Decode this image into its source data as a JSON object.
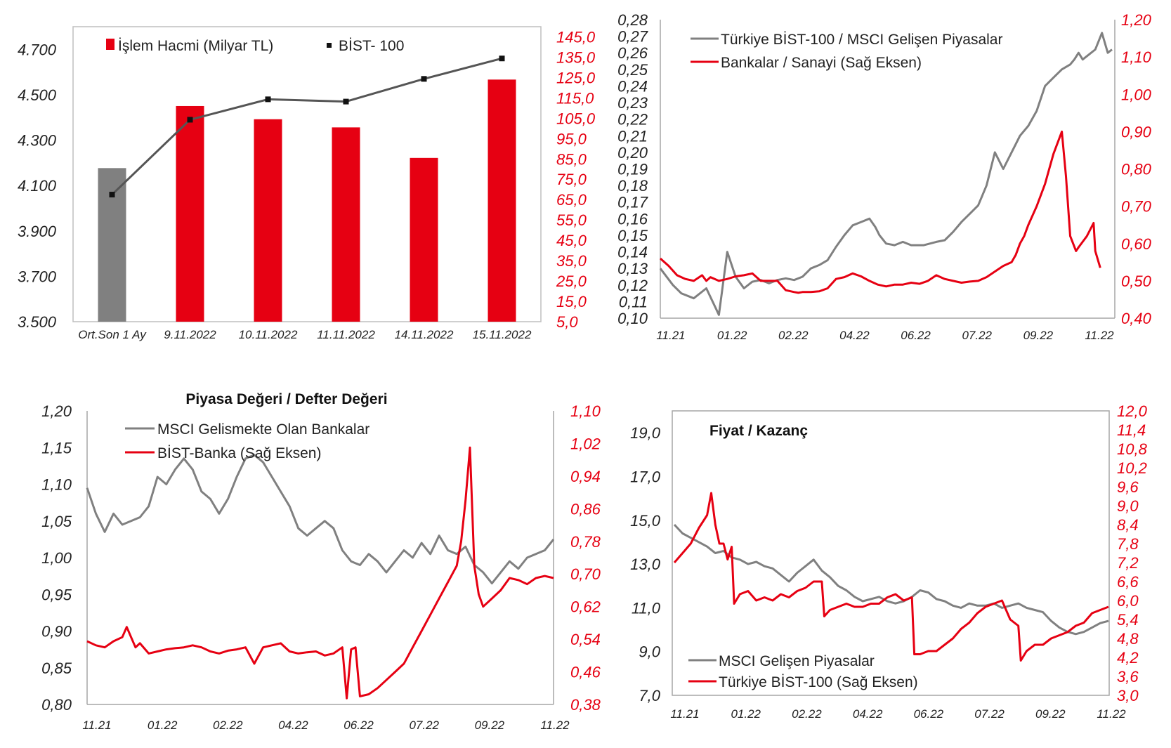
{
  "chart_data": [
    {
      "type": "bar",
      "legend": [
        "İşlem Hacmi (Milyar TL)",
        "BİST- 100"
      ],
      "categories": [
        "Ort.Son 1 Ay",
        "9.11.2022",
        "10.11.2022",
        "11.11.2022",
        "14.11.2022",
        "15.11.2022"
      ],
      "series": [
        {
          "name": "İşlem Hacmi (Milyar TL)",
          "axis": "right",
          "values": [
            80.5,
            111.0,
            104.5,
            100.5,
            85.5,
            124.0
          ],
          "colors": [
            "#808080",
            "#e60012",
            "#e60012",
            "#e60012",
            "#e60012",
            "#e60012"
          ]
        },
        {
          "name": "BİST- 100",
          "axis": "left",
          "type": "line",
          "values": [
            4060,
            4390,
            4480,
            4470,
            4570,
            4660
          ],
          "color": "#555555"
        }
      ],
      "yleft": {
        "ticks": [
          "3.500",
          "3.700",
          "3.900",
          "4.100",
          "4.300",
          "4.500",
          "4.700"
        ],
        "lim": [
          3500,
          4800
        ]
      },
      "yright": {
        "ticks": [
          "5,0",
          "15,0",
          "25,0",
          "35,0",
          "45,0",
          "55,0",
          "65,0",
          "75,0",
          "85,0",
          "95,0",
          "105,0",
          "115,0",
          "125,0",
          "135,0",
          "145,0"
        ],
        "lim": [
          5,
          150
        ]
      }
    },
    {
      "type": "line",
      "legend": [
        "Türkiye BİST-100 / MSCI Gelişen Piyasalar",
        "Bankalar / Sanayi (Sağ Eksen)"
      ],
      "xticks": [
        "11.21",
        "01.22",
        "02.22",
        "04.22",
        "06.22",
        "07.22",
        "09.22",
        "11.22"
      ],
      "yleft": {
        "ticks": [
          "0,10",
          "0,11",
          "0,12",
          "0,13",
          "0,14",
          "0,15",
          "0,16",
          "0,17",
          "0,18",
          "0,19",
          "0,20",
          "0,21",
          "0,22",
          "0,23",
          "0,24",
          "0,25",
          "0,26",
          "0,27",
          "0,28"
        ],
        "lim": [
          0.1,
          0.28
        ]
      },
      "yright": {
        "ticks": [
          "0,40",
          "0,50",
          "0,60",
          "0,70",
          "0,80",
          "0,90",
          "1,00",
          "1,10",
          "1,20"
        ],
        "lim": [
          0.4,
          1.2
        ]
      },
      "series": [
        {
          "name": "Türkiye BİST-100 / MSCI Gelişen Piyasalar",
          "axis": "left",
          "color": "#808080",
          "x": [
            0,
            1.5,
            2.5,
            4,
            5.5,
            7,
            8,
            9,
            10,
            11,
            12,
            13,
            14,
            15,
            16,
            17,
            17.6,
            18,
            19,
            20,
            21,
            22,
            23,
            24,
            25,
            25.7,
            26.2,
            27,
            28,
            29,
            30,
            31.5,
            33,
            34,
            35,
            36,
            37,
            38,
            39,
            40,
            41,
            42,
            43,
            44,
            45,
            46,
            47,
            48,
            49,
            49.5,
            50,
            50.5,
            51,
            52,
            52.8,
            53.5,
            54
          ],
          "values": [
            0.13,
            0.12,
            0.115,
            0.112,
            0.118,
            0.102,
            0.14,
            0.125,
            0.118,
            0.122,
            0.123,
            0.121,
            0.123,
            0.124,
            0.123,
            0.125,
            0.128,
            0.13,
            0.132,
            0.135,
            0.143,
            0.15,
            0.156,
            0.158,
            0.16,
            0.155,
            0.15,
            0.145,
            0.144,
            0.146,
            0.144,
            0.144,
            0.146,
            0.147,
            0.152,
            0.158,
            0.163,
            0.168,
            0.18,
            0.2,
            0.19,
            0.2,
            0.21,
            0.216,
            0.225,
            0.24,
            0.245,
            0.25,
            0.253,
            0.256,
            0.26,
            0.256,
            0.258,
            0.262,
            0.272,
            0.26,
            0.262
          ]
        },
        {
          "name": "Bankalar / Sanayi (Sağ Eksen)",
          "axis": "right",
          "color": "#e60012",
          "x": [
            0,
            1,
            2,
            3,
            4,
            5,
            5.5,
            6,
            7,
            8,
            9,
            10,
            11,
            12,
            13,
            14,
            15,
            16,
            16.5,
            17,
            18,
            19,
            20,
            21,
            22,
            23,
            24,
            25,
            26,
            27,
            28,
            29,
            30,
            31,
            32,
            33,
            34,
            35,
            36,
            37,
            38,
            39,
            40,
            41,
            42,
            42.5,
            43,
            43.5,
            44,
            45,
            46,
            47,
            48,
            48.5,
            49,
            49.7,
            50,
            51,
            51.8,
            52,
            52.6
          ],
          "values": [
            0.56,
            0.54,
            0.515,
            0.505,
            0.5,
            0.515,
            0.5,
            0.51,
            0.5,
            0.505,
            0.512,
            0.515,
            0.52,
            0.5,
            0.5,
            0.5,
            0.475,
            0.47,
            0.468,
            0.47,
            0.47,
            0.472,
            0.48,
            0.505,
            0.51,
            0.52,
            0.512,
            0.5,
            0.49,
            0.485,
            0.49,
            0.49,
            0.495,
            0.492,
            0.5,
            0.515,
            0.505,
            0.5,
            0.495,
            0.498,
            0.5,
            0.51,
            0.525,
            0.54,
            0.55,
            0.57,
            0.6,
            0.62,
            0.65,
            0.7,
            0.76,
            0.84,
            0.9,
            0.78,
            0.62,
            0.58,
            0.59,
            0.62,
            0.655,
            0.58,
            0.535
          ]
        }
      ]
    },
    {
      "type": "line",
      "title": "Piyasa Değeri / Defter Değeri",
      "legend": [
        "MSCI Gelismekte Olan Bankalar",
        "BİST-Banka (Sağ Eksen)"
      ],
      "xticks": [
        "11.21",
        "01.22",
        "02.22",
        "04.22",
        "06.22",
        "07.22",
        "09.22",
        "11.22"
      ],
      "yleft": {
        "ticks": [
          "0,80",
          "0,85",
          "0,90",
          "0,95",
          "1,00",
          "1,05",
          "1,10",
          "1,15",
          "1,20"
        ],
        "lim": [
          0.8,
          1.2
        ]
      },
      "yright": {
        "ticks": [
          "0,38",
          "0,46",
          "0,54",
          "0,62",
          "0,70",
          "0,78",
          "0,86",
          "0,94",
          "1,02",
          "1,10"
        ],
        "lim": [
          0.38,
          1.1
        ]
      },
      "series": [
        {
          "name": "MSCI Gelismekte Olan Bankalar",
          "axis": "left",
          "color": "#808080",
          "x": [
            0,
            1,
            2,
            3,
            4,
            5,
            6,
            7,
            8,
            9,
            10,
            11,
            12,
            13,
            14,
            15,
            16,
            17,
            18,
            19,
            20,
            21,
            22,
            23,
            24,
            25,
            26,
            27,
            28,
            29,
            30,
            31,
            32,
            33,
            34,
            35,
            36,
            37,
            38,
            39,
            40,
            41,
            42,
            43,
            44,
            45,
            46,
            47,
            48,
            49,
            50,
            51,
            52,
            53
          ],
          "values": [
            1.095,
            1.06,
            1.035,
            1.06,
            1.045,
            1.05,
            1.055,
            1.07,
            1.11,
            1.1,
            1.12,
            1.135,
            1.12,
            1.09,
            1.08,
            1.06,
            1.08,
            1.11,
            1.135,
            1.14,
            1.13,
            1.11,
            1.09,
            1.07,
            1.04,
            1.03,
            1.04,
            1.05,
            1.04,
            1.01,
            0.995,
            0.99,
            1.005,
            0.995,
            0.98,
            0.995,
            1.01,
            1.0,
            1.02,
            1.005,
            1.03,
            1.01,
            1.005,
            1.015,
            0.99,
            0.98,
            0.965,
            0.98,
            0.995,
            0.985,
            1.0,
            1.005,
            1.01,
            1.025
          ]
        },
        {
          "name": "BİST-Banka (Sağ Eksen)",
          "axis": "right",
          "color": "#e60012",
          "x": [
            0,
            1,
            2,
            3,
            4,
            4.5,
            5,
            5.5,
            6,
            7,
            8,
            9,
            10,
            11,
            12,
            13,
            14,
            15,
            16,
            17,
            18,
            19,
            20,
            21,
            22,
            23,
            24,
            25,
            26,
            27,
            28,
            29,
            29.5,
            30,
            30.5,
            31,
            32,
            33,
            34,
            35,
            36,
            37,
            38,
            39,
            40,
            41,
            42,
            42.5,
            43,
            43.5,
            44,
            44.5,
            45,
            46,
            47,
            48,
            49,
            50,
            51,
            52,
            53
          ],
          "values": [
            0.535,
            0.525,
            0.52,
            0.535,
            0.545,
            0.57,
            0.545,
            0.52,
            0.53,
            0.505,
            0.51,
            0.515,
            0.518,
            0.52,
            0.525,
            0.52,
            0.51,
            0.505,
            0.512,
            0.515,
            0.52,
            0.48,
            0.52,
            0.525,
            0.53,
            0.51,
            0.505,
            0.508,
            0.51,
            0.5,
            0.505,
            0.52,
            0.395,
            0.515,
            0.52,
            0.4,
            0.405,
            0.42,
            0.44,
            0.46,
            0.48,
            0.52,
            0.56,
            0.6,
            0.64,
            0.68,
            0.72,
            0.78,
            0.88,
            1.01,
            0.72,
            0.65,
            0.62,
            0.64,
            0.66,
            0.69,
            0.685,
            0.675,
            0.69,
            0.695,
            0.69
          ]
        }
      ]
    },
    {
      "type": "line",
      "title": "Fiyat / Kazanç",
      "legend": [
        "MSCI Gelişen Piyasalar",
        "Türkiye BİST-100 (Sağ Eksen)"
      ],
      "xticks": [
        "11.21",
        "01.22",
        "02.22",
        "04.22",
        "06.22",
        "07.22",
        "09.22",
        "11.22"
      ],
      "yleft": {
        "ticks": [
          "7,0",
          "9,0",
          "11,0",
          "13,0",
          "15,0",
          "17,0",
          "19,0"
        ],
        "lim": [
          7.0,
          20.0
        ]
      },
      "yright": {
        "ticks": [
          "3,0",
          "3,6",
          "4,2",
          "4,8",
          "5,4",
          "6,0",
          "6,6",
          "7,2",
          "7,8",
          "8,4",
          "9,0",
          "9,6",
          "10,2",
          "10,8",
          "11,4",
          "12,0"
        ],
        "lim": [
          3.0,
          12.0
        ]
      },
      "series": [
        {
          "name": "MSCI Gelişen Piyasalar",
          "axis": "left",
          "color": "#808080",
          "x": [
            0,
            1,
            2,
            3,
            4,
            5,
            6,
            7,
            8,
            9,
            10,
            11,
            12,
            13,
            14,
            15,
            16,
            17,
            18,
            19,
            20,
            21,
            22,
            23,
            24,
            25,
            26,
            27,
            28,
            29,
            30,
            31,
            32,
            33,
            34,
            35,
            36,
            37,
            38,
            39,
            40,
            41,
            42,
            43,
            44,
            45,
            46,
            47,
            48,
            49,
            50,
            51,
            52,
            53
          ],
          "values": [
            14.8,
            14.4,
            14.2,
            14.0,
            13.8,
            13.5,
            13.6,
            13.3,
            13.2,
            13.0,
            13.1,
            12.9,
            12.8,
            12.5,
            12.2,
            12.6,
            12.9,
            13.2,
            12.7,
            12.4,
            12.0,
            11.8,
            11.5,
            11.3,
            11.4,
            11.5,
            11.3,
            11.2,
            11.3,
            11.5,
            11.8,
            11.7,
            11.4,
            11.3,
            11.1,
            11.0,
            11.2,
            11.1,
            11.1,
            11.2,
            11.0,
            11.1,
            11.2,
            11.0,
            10.9,
            10.8,
            10.4,
            10.1,
            9.9,
            9.8,
            9.9,
            10.1,
            10.3,
            10.4
          ]
        },
        {
          "name": "Türkiye BİST-100 (Sağ Eksen)",
          "axis": "right",
          "color": "#e60012",
          "x": [
            0,
            1,
            2,
            3,
            4,
            4.5,
            5,
            5.5,
            6,
            6.5,
            7,
            7.3,
            8,
            9,
            10,
            11,
            12,
            13,
            14,
            15,
            16,
            17,
            18,
            18.3,
            19,
            20,
            21,
            22,
            23,
            24,
            25,
            26,
            27,
            28,
            29,
            29.3,
            30,
            31,
            32,
            33,
            34,
            35,
            36,
            37,
            38,
            39,
            40,
            41,
            42,
            42.3,
            43,
            44,
            45,
            46,
            47,
            48,
            49,
            50,
            51,
            52,
            53
          ],
          "values": [
            7.2,
            7.5,
            7.8,
            8.3,
            8.7,
            9.4,
            8.4,
            7.8,
            7.8,
            7.3,
            7.7,
            5.9,
            6.2,
            6.3,
            6.0,
            6.1,
            6.0,
            6.2,
            6.1,
            6.3,
            6.4,
            6.6,
            6.6,
            5.5,
            5.7,
            5.8,
            5.9,
            5.8,
            5.8,
            5.9,
            5.9,
            6.1,
            6.2,
            6.0,
            6.1,
            4.3,
            4.3,
            4.4,
            4.4,
            4.6,
            4.8,
            5.1,
            5.3,
            5.6,
            5.8,
            5.9,
            6.0,
            5.4,
            5.2,
            4.1,
            4.4,
            4.6,
            4.6,
            4.8,
            4.9,
            5.0,
            5.2,
            5.3,
            5.6,
            5.7,
            5.8
          ]
        }
      ]
    }
  ]
}
